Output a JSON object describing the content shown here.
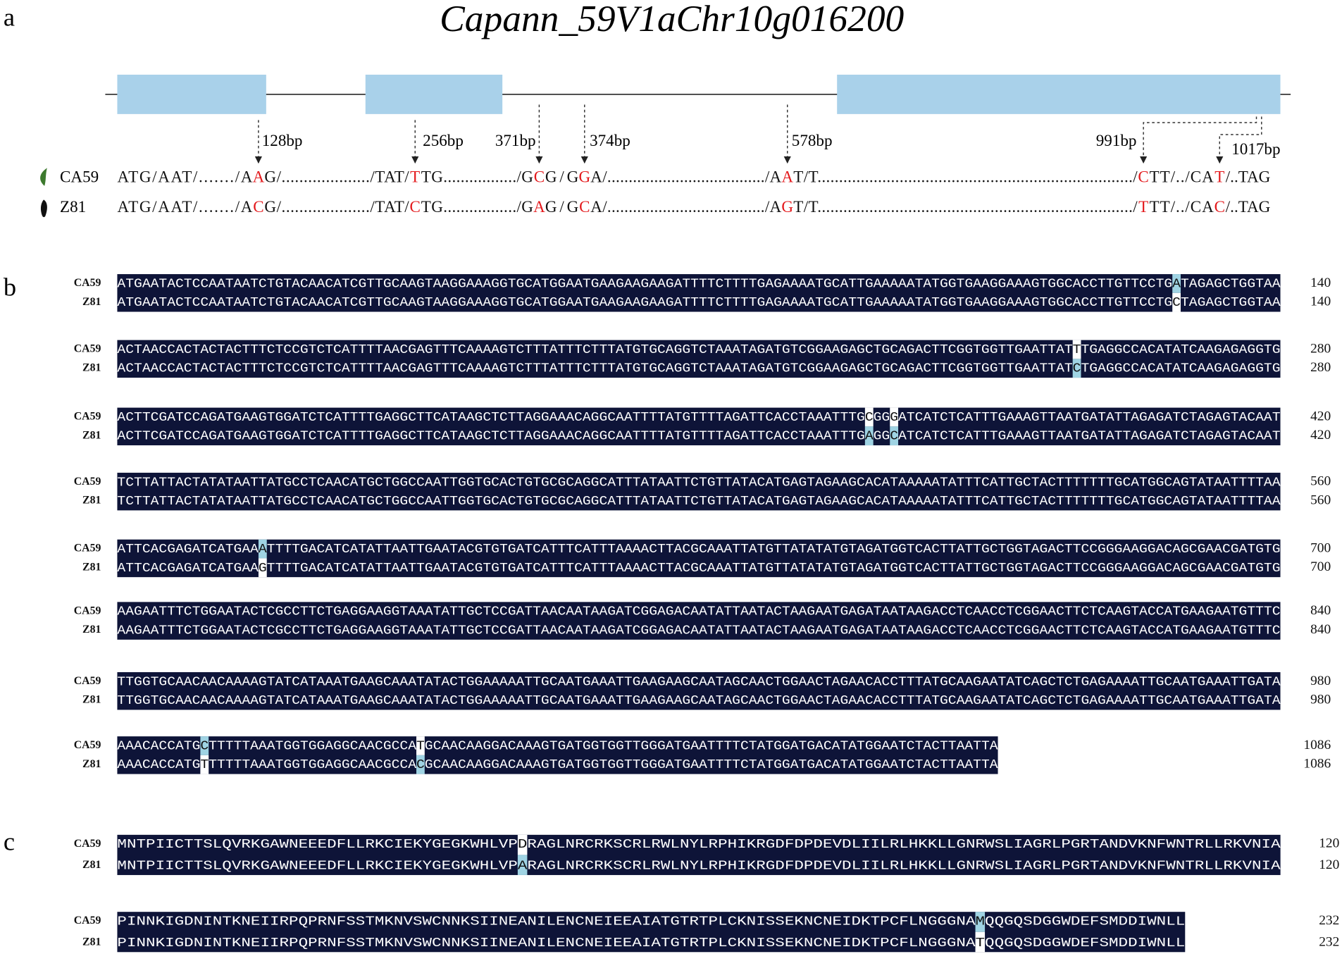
{
  "panel_a": {
    "label": "a",
    "title": "Capann_59V1aChr10g016200",
    "variant_color": "#e3191c",
    "positions": [
      "128bp",
      "256bp",
      "371bp",
      "374bp",
      "578bp",
      "991bp",
      "1017bp"
    ],
    "rows": [
      {
        "name": "CA59",
        "segments": [
          "ATG/AAT/......./A",
          "A",
          "G/..................../TAT/",
          "T",
          "TG................./G",
          "C",
          "G/G",
          "G",
          "A/...................................../A",
          "A",
          "T/T........................................................................./",
          "C",
          "TT/../CA",
          "T",
          "/..TAG"
        ]
      },
      {
        "name": "Z81",
        "segments": [
          "ATG/AAT/......./A",
          "C",
          "G/..................../TAT/",
          "C",
          "TG................./G",
          "A",
          "G/G",
          "C",
          "A/...................................../A",
          "G",
          "T/T........................................................................./",
          "T",
          "TT/../CA",
          "C",
          "/..TAG"
        ]
      }
    ]
  },
  "panel_b": {
    "label": "b",
    "background_color": "#0e1438",
    "mismatch_color": "#9fd3e3",
    "blocks": [
      {
        "rows": [
          {
            "name": "CA59",
            "sequence": "ATGAATACTCCAATAATCTGTACAACATCGTTGCAAGTAAGGAAAGGTGCATGGAATGAAGAAGAAGATTTTCTTTTGAGAAAATGCATTGAAAAATATGGTGAAGGAAAGTGGCACCTTGTTCCTGATAGAGCTGGTAA",
            "end": 140
          },
          {
            "name": "Z81",
            "sequence": "ATGAATACTCCAATAATCTGTACAACATCGTTGCAAGTAAGGAAAGGTGCATGGAATGAAGAAGAAGATTTTCTTTTGAGAAAATGCATTGAAAAATATGGTGAAGGAAAGTGGCACCTTGTTCCTGCTAGAGCTGGTAA",
            "end": 140
          }
        ]
      },
      {
        "rows": [
          {
            "name": "CA59",
            "sequence": "ACTAACCACTACTACTTTCTCCGTCTCATTTTAACGAGTTTCAAAAGTCTTTATTTCTTTATGTGCAGGTCTAAATAGATGTCGGAAGAGCTGCAGACTTCGGTGGTTGAATTATTTGAGGCCACATATCAAGAGAGGTG",
            "end": 280
          },
          {
            "name": "Z81",
            "sequence": "ACTAACCACTACTACTTTCTCCGTCTCATTTTAACGAGTTTCAAAAGTCTTTATTTCTTTATGTGCAGGTCTAAATAGATGTCGGAAGAGCTGCAGACTTCGGTGGTTGAATTATCTGAGGCCACATATCAAGAGAGGTG",
            "end": 280
          }
        ]
      },
      {
        "rows": [
          {
            "name": "CA59",
            "sequence": "ACTTCGATCCAGATGAAGTGGATCTCATTTTGAGGCTTCATAAGCTCTTAGGAAACAGGCAATTTTATGTTTTAGATTCACCTAAATTTGCGGGATCATCTCATTTGAAAGTTAATGATATTAGAGATCTAGAGTACAAT",
            "end": 420
          },
          {
            "name": "Z81",
            "sequence": "ACTTCGATCCAGATGAAGTGGATCTCATTTTGAGGCTTCATAAGCTCTTAGGAAACAGGCAATTTTATGTTTTAGATTCACCTAAATTTGAGGCATCATCTCATTTGAAAGTTAATGATATTAGAGATCTAGAGTACAAT",
            "end": 420
          }
        ]
      },
      {
        "rows": [
          {
            "name": "CA59",
            "sequence": "TCTTATTACTATATAATTATGCCTCAACATGCTGGCCAATTGGTGCACTGTGCGCAGGCATTTATAATTCTGTTATACATGAGTAGAAGCACATAAAAATATTTCATTGCTACTTTTTTTGCATGGCAGTATAATTTTAA",
            "end": 560
          },
          {
            "name": "Z81",
            "sequence": "TCTTATTACTATATAATTATGCCTCAACATGCTGGCCAATTGGTGCACTGTGCGCAGGCATTTATAATTCTGTTATACATGAGTAGAAGCACATAAAAATATTTCATTGCTACTTTTTTTGCATGGCAGTATAATTTTAA",
            "end": 560
          }
        ]
      },
      {
        "rows": [
          {
            "name": "CA59",
            "sequence": "ATTCACGAGATCATGAAATTTTGACATCATATTAATTGAATACGTGTGATCATTTCATTTAAAACTTACGCAAATTATGTTATATATGTAGATGGTCACTTATTGCTGGTAGACTTCCGGGAAGGACAGCGAACGATGTG",
            "end": 700
          },
          {
            "name": "Z81",
            "sequence": "ATTCACGAGATCATGAAGTTTTGACATCATATTAATTGAATACGTGTGATCATTTCATTTAAAACTTACGCAAATTATGTTATATATGTAGATGGTCACTTATTGCTGGTAGACTTCCGGGAAGGACAGCGAACGATGTG",
            "end": 700
          }
        ]
      },
      {
        "rows": [
          {
            "name": "CA59",
            "sequence": "AAGAATTTCTGGAATACTCGCCTTCTGAGGAAGGTAAATATTGCTCCGATTAACAATAAGATCGGAGACAATATTAATACTAAGAATGAGATAATAAGACCTCAACCTCGGAACTTCTCAAGTACCATGAAGAATGTTTC",
            "end": 840
          },
          {
            "name": "Z81",
            "sequence": "AAGAATTTCTGGAATACTCGCCTTCTGAGGAAGGTAAATATTGCTCCGATTAACAATAAGATCGGAGACAATATTAATACTAAGAATGAGATAATAAGACCTCAACCTCGGAACTTCTCAAGTACCATGAAGAATGTTTC",
            "end": 840
          }
        ]
      },
      {
        "rows": [
          {
            "name": "CA59",
            "sequence": "TTGGTGCAACAACAAAAGTATCATAAATGAAGCAAATATACTGGAAAAATTGCAATGAAATTGAAGAAGCAATAGCAACTGGAACTAGAACACCTTTATGCAAGAATATCAGCTCTGAGAAAATTGCAATGAAATTGATA",
            "end": 980
          },
          {
            "name": "Z81",
            "sequence": "TTGGTGCAACAACAAAAGTATCATAAATGAAGCAAATATACTGGAAAAATTGCAATGAAATTGAAGAAGCAATAGCAACTGGAACTAGAACACCTTTATGCAAGAATATCAGCTCTGAGAAAATTGCAATGAAATTGATA",
            "end": 980
          }
        ]
      },
      {
        "rows": [
          {
            "name": "CA59",
            "sequence": "AAACACCATGCTTTTTAAATGGTGGAGGCAACGCCATGCAACAAGGACAAAGTGATGGTGGTTGGGATGAATTTTCTATGGATGACATATGGAATCTACTTAATTA",
            "end": 1086
          },
          {
            "name": "Z81",
            "sequence": "AAACACCATGTTTTTTAAATGGTGGAGGCAACGCCACGCAACAAGGACAAAGTGATGGTGGTTGGGATGAATTTTCTATGGATGACATATGGAATCTACTTAATTA",
            "end": 1086
          }
        ]
      }
    ]
  },
  "panel_c": {
    "label": "c",
    "background_color": "#0e1438",
    "mismatch_color": "#9fd3e3",
    "blocks": [
      {
        "rows": [
          {
            "name": "CA59",
            "sequence": "MNTPIICTTSLQVRKGAWNEEEDFLLRKCIEKYGEGKWHLVPDRAGLNRCRKSCRLRWLNYLRPHIKRGDFDPDEVDLIILRLHKKLLGNRWSLIAGRLPGRTANDVKNFWNTRLLRKVNIA",
            "end": 120
          },
          {
            "name": "Z81",
            "sequence": "MNTPIICTTSLQVRKGAWNEEEDFLLRKCIEKYGEGKWHLVPARAGLNRCRKSCRLRWLNYLRPHIKRGDFDPDEVDLIILRLHKKLLGNRWSLIAGRLPGRTANDVKNFWNTRLLRKVNIA",
            "end": 120
          }
        ]
      },
      {
        "rows": [
          {
            "name": "CA59",
            "sequence": "PINNKIGDNINTKNEIIRPQPRNFSSTMKNVSWCNNKSIINEANILENCNEIEEAIATGTRTPLCKNISSEKNCNEIDKTPCFLNGGGNAMQQGQSDGGWDEFSMDDIWNLL",
            "end": 232
          },
          {
            "name": "Z81",
            "sequence": "PINNKIGDNINTKNEIIRPQPRNFSSTMKNVSWCNNKSIINEANILENCNEIEEAIATGTRTPLCKNISSEKNCNEIDKTPCFLNGGGNATQQGQSDGGWDEFSMDDIWNLL",
            "end": 232
          }
        ]
      }
    ]
  }
}
